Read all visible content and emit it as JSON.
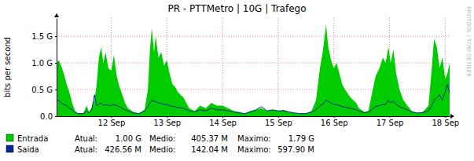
{
  "chart_data": {
    "type": "area",
    "title": "PR - PTTMetro | 10G | Trafego",
    "y_label": "bits per second",
    "watermark": "RRDTOOL / TOBI OETIKER",
    "grid": true,
    "xlim": [
      11.02,
      18.08
    ],
    "xticks": [
      {
        "value": 12,
        "label": "12 Sep"
      },
      {
        "value": 13,
        "label": "13 Sep"
      },
      {
        "value": 14,
        "label": "14 Sep"
      },
      {
        "value": 15,
        "label": "15 Sep"
      },
      {
        "value": 16,
        "label": "16 Sep"
      },
      {
        "value": 17,
        "label": "17 Sep"
      },
      {
        "value": 18,
        "label": "18 Sep"
      }
    ],
    "ylim": [
      0,
      1.84
    ],
    "yticks": [
      {
        "value": 0,
        "label": "0.0"
      },
      {
        "value": 0.5,
        "label": "0.5 G"
      },
      {
        "value": 1,
        "label": "1.0 G"
      },
      {
        "value": 1.5,
        "label": "1.5 G"
      }
    ],
    "x": [
      11.02,
      11.06,
      11.1,
      11.15,
      11.2,
      11.25,
      11.3,
      11.35,
      11.4,
      11.5,
      11.56,
      11.6,
      11.65,
      11.7,
      11.74,
      11.78,
      11.82,
      11.86,
      11.9,
      11.95,
      12.0,
      12.05,
      12.1,
      12.15,
      12.2,
      12.25,
      12.3,
      12.4,
      12.5,
      12.6,
      12.66,
      12.7,
      12.73,
      12.77,
      12.8,
      12.85,
      12.9,
      12.95,
      13.0,
      13.05,
      13.1,
      13.15,
      13.2,
      13.3,
      13.4,
      13.5,
      13.6,
      13.7,
      13.8,
      13.9,
      14.0,
      14.1,
      14.2,
      14.3,
      14.4,
      14.5,
      14.6,
      14.7,
      14.8,
      14.9,
      15.0,
      15.1,
      15.2,
      15.3,
      15.4,
      15.5,
      15.6,
      15.68,
      15.75,
      15.8,
      15.86,
      15.9,
      15.95,
      16.0,
      16.05,
      16.1,
      16.15,
      16.2,
      16.3,
      16.4,
      16.45,
      16.55,
      16.62,
      16.68,
      16.75,
      16.82,
      16.88,
      16.93,
      16.98,
      17.02,
      17.07,
      17.12,
      17.18,
      17.25,
      17.32,
      17.4,
      17.5,
      17.6,
      17.7,
      17.76,
      17.8,
      17.85,
      17.9,
      17.95,
      18.0,
      18.04,
      18.08
    ],
    "series": [
      {
        "name": "Entrada",
        "type": "area",
        "color": "#00cc00",
        "legend_stats": [
          [
            "Atual:",
            "1.00 G"
          ],
          [
            "Medio:",
            "405.37 M"
          ],
          [
            "Maximo:",
            "1.79 G"
          ]
        ],
        "values": [
          1.0,
          1.05,
          0.95,
          0.8,
          0.6,
          0.45,
          0.25,
          0.1,
          0.05,
          0.05,
          0.2,
          0.08,
          0.15,
          0.3,
          0.6,
          1.1,
          1.3,
          1.0,
          1.2,
          0.9,
          0.85,
          1.15,
          0.75,
          0.55,
          0.4,
          0.25,
          0.15,
          0.08,
          0.05,
          0.12,
          0.5,
          1.3,
          1.65,
          1.2,
          1.5,
          1.1,
          1.2,
          0.95,
          1.05,
          0.8,
          0.6,
          0.55,
          0.45,
          0.35,
          0.15,
          0.1,
          0.2,
          0.15,
          0.25,
          0.2,
          0.2,
          0.15,
          0.1,
          0.08,
          0.05,
          0.1,
          0.12,
          0.15,
          0.1,
          0.12,
          0.1,
          0.12,
          0.08,
          0.06,
          0.05,
          0.05,
          0.1,
          0.3,
          0.9,
          1.2,
          1.72,
          1.3,
          1.05,
          0.9,
          1.0,
          0.8,
          0.6,
          0.5,
          0.35,
          0.25,
          0.15,
          0.08,
          0.1,
          0.4,
          0.75,
          0.9,
          1.1,
          1.0,
          1.3,
          1.0,
          1.25,
          0.8,
          0.5,
          0.3,
          0.2,
          0.1,
          0.06,
          0.08,
          0.2,
          0.9,
          1.45,
          1.3,
          0.9,
          1.1,
          0.7,
          0.8,
          1.0
        ]
      },
      {
        "name": "Saida",
        "type": "line",
        "color": "#002a97",
        "legend_stats": [
          [
            "Atual:",
            "426.56 M"
          ],
          [
            "Medio:",
            "142.04 M"
          ],
          [
            "Maximo:",
            "597.90 M"
          ]
        ],
        "values": [
          0.28,
          0.3,
          0.25,
          0.22,
          0.2,
          0.15,
          0.12,
          0.08,
          0.05,
          0.05,
          0.1,
          0.06,
          0.12,
          0.4,
          0.2,
          0.22,
          0.25,
          0.2,
          0.22,
          0.2,
          0.2,
          0.22,
          0.2,
          0.18,
          0.15,
          0.12,
          0.1,
          0.06,
          0.05,
          0.1,
          0.18,
          0.25,
          0.3,
          0.28,
          0.27,
          0.25,
          0.24,
          0.22,
          0.22,
          0.2,
          0.18,
          0.18,
          0.16,
          0.15,
          0.1,
          0.08,
          0.12,
          0.1,
          0.15,
          0.12,
          0.12,
          0.1,
          0.08,
          0.06,
          0.05,
          0.08,
          0.12,
          0.18,
          0.1,
          0.12,
          0.1,
          0.1,
          0.08,
          0.06,
          0.05,
          0.05,
          0.08,
          0.12,
          0.2,
          0.22,
          0.3,
          0.28,
          0.25,
          0.22,
          0.22,
          0.2,
          0.18,
          0.17,
          0.15,
          0.12,
          0.1,
          0.06,
          0.08,
          0.12,
          0.18,
          0.2,
          0.22,
          0.22,
          0.3,
          0.25,
          0.28,
          0.22,
          0.18,
          0.15,
          0.12,
          0.08,
          0.06,
          0.07,
          0.1,
          0.2,
          0.3,
          0.35,
          0.4,
          0.3,
          0.45,
          0.6,
          0.43
        ]
      }
    ]
  }
}
